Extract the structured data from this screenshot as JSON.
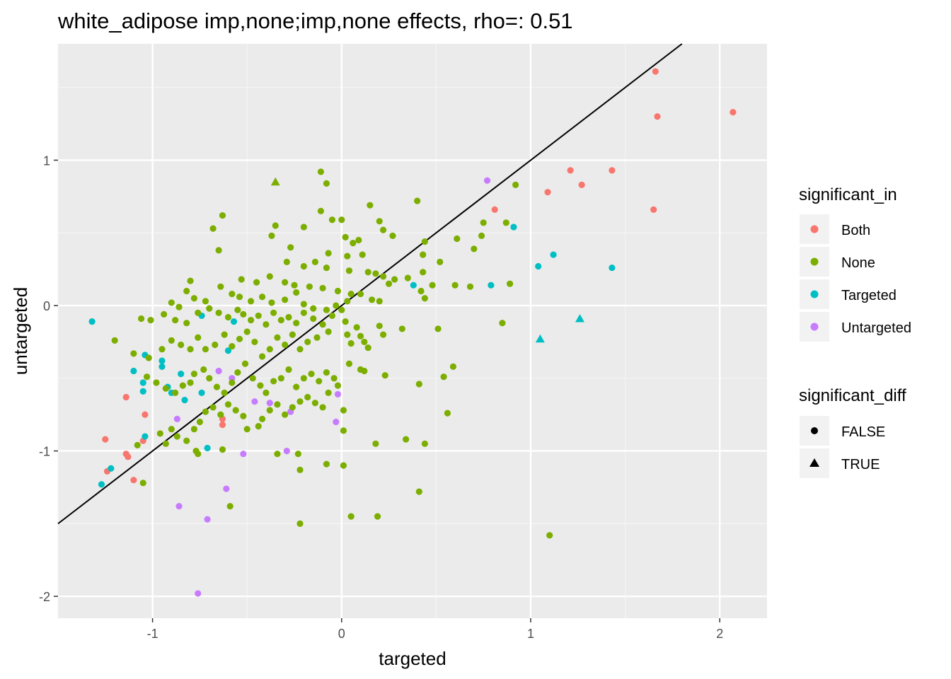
{
  "chart_data": {
    "type": "scatter",
    "title": "white_adipose imp,none;imp,none effects, rho=: 0.51",
    "xlabel": "targeted",
    "ylabel": "untargeted",
    "xlim": [
      -1.5,
      2.25
    ],
    "ylim": [
      -2.15,
      1.8
    ],
    "x_ticks": [
      -1,
      0,
      1,
      2
    ],
    "y_ticks": [
      -2,
      -1,
      0,
      1
    ],
    "x_tick_labels": [
      "-1",
      "0",
      "1",
      "2"
    ],
    "y_tick_labels": [
      "-2",
      "-1",
      "0",
      "1"
    ],
    "grid": true,
    "reference_line": {
      "slope": 1,
      "intercept": 0
    },
    "legends": [
      {
        "title": "significant_in",
        "position": "right",
        "entries": [
          {
            "label": "Both",
            "color": "#F8766D"
          },
          {
            "label": "None",
            "color": "#7CAE00"
          },
          {
            "label": "Targeted",
            "color": "#00BFC4"
          },
          {
            "label": "Untargeted",
            "color": "#C77CFF"
          }
        ]
      },
      {
        "title": "significant_diff",
        "position": "right",
        "entries": [
          {
            "label": "FALSE",
            "shape": "circle"
          },
          {
            "label": "TRUE",
            "shape": "triangle"
          }
        ]
      }
    ],
    "series": [
      {
        "group": "Both",
        "shape": "circle",
        "points": [
          [
            1.66,
            1.61
          ],
          [
            1.67,
            1.3
          ],
          [
            2.07,
            1.33
          ],
          [
            1.21,
            0.93
          ],
          [
            1.43,
            0.93
          ],
          [
            1.27,
            0.83
          ],
          [
            1.09,
            0.78
          ],
          [
            1.65,
            0.66
          ],
          [
            0.81,
            0.66
          ],
          [
            -1.14,
            -0.63
          ],
          [
            -1.04,
            -0.75
          ],
          [
            -1.05,
            -0.93
          ],
          [
            -1.25,
            -0.92
          ],
          [
            -1.14,
            -1.02
          ],
          [
            -1.13,
            -1.04
          ],
          [
            -1.24,
            -1.14
          ],
          [
            -1.1,
            -1.2
          ],
          [
            -0.63,
            -0.78
          ],
          [
            -0.63,
            -0.82
          ]
        ]
      },
      {
        "group": "Targeted",
        "shape": "circle",
        "points": [
          [
            -1.32,
            -0.11
          ],
          [
            0.91,
            0.54
          ],
          [
            1.12,
            0.35
          ],
          [
            1.04,
            0.27
          ],
          [
            1.43,
            0.26
          ],
          [
            0.79,
            0.14
          ],
          [
            0.38,
            0.14
          ],
          [
            -1.1,
            -0.45
          ],
          [
            -1.04,
            -0.34
          ],
          [
            -0.95,
            -0.38
          ],
          [
            -0.95,
            -0.42
          ],
          [
            -1.05,
            -0.53
          ],
          [
            -1.05,
            -0.59
          ],
          [
            -0.92,
            -0.56
          ],
          [
            -0.9,
            -0.6
          ],
          [
            -0.85,
            -0.47
          ],
          [
            -0.83,
            -0.65
          ],
          [
            -0.74,
            -0.6
          ],
          [
            -0.71,
            -0.98
          ],
          [
            -1.04,
            -0.9
          ],
          [
            -1.22,
            -1.12
          ],
          [
            -1.27,
            -1.23
          ],
          [
            -0.57,
            -0.11
          ],
          [
            -0.6,
            -0.31
          ],
          [
            -0.74,
            -0.07
          ]
        ]
      },
      {
        "group": "Untargeted",
        "shape": "circle",
        "points": [
          [
            0.77,
            0.86
          ],
          [
            -0.65,
            -0.45
          ],
          [
            -0.58,
            -0.5
          ],
          [
            -0.46,
            -0.66
          ],
          [
            -0.38,
            -0.67
          ],
          [
            -0.27,
            -0.73
          ],
          [
            -0.02,
            -0.61
          ],
          [
            -0.03,
            -0.8
          ],
          [
            -0.29,
            -1.0
          ],
          [
            -0.52,
            -1.02
          ],
          [
            -0.61,
            -1.26
          ],
          [
            -0.87,
            -0.78
          ],
          [
            -0.86,
            -1.38
          ],
          [
            -0.71,
            -1.47
          ],
          [
            -0.76,
            -1.98
          ]
        ]
      },
      {
        "group": "Targeted",
        "shape": "triangle",
        "points": [
          [
            1.05,
            -0.23
          ],
          [
            1.26,
            -0.09
          ]
        ]
      },
      {
        "group": "None",
        "shape": "triangle",
        "points": [
          [
            -0.35,
            0.85
          ]
        ]
      },
      {
        "group": "None",
        "shape": "circle",
        "points": [
          [
            -0.11,
            0.92
          ],
          [
            -0.08,
            0.84
          ],
          [
            0.4,
            0.72
          ],
          [
            0.15,
            0.69
          ],
          [
            -0.63,
            0.62
          ],
          [
            -0.68,
            0.53
          ],
          [
            0.92,
            0.83
          ],
          [
            -0.11,
            0.65
          ],
          [
            -0.05,
            0.59
          ],
          [
            0.0,
            0.59
          ],
          [
            -0.35,
            0.55
          ],
          [
            -0.2,
            0.54
          ],
          [
            0.2,
            0.58
          ],
          [
            0.22,
            0.52
          ],
          [
            0.02,
            0.47
          ],
          [
            0.09,
            0.45
          ],
          [
            0.06,
            0.43
          ],
          [
            -0.37,
            0.48
          ],
          [
            0.27,
            0.48
          ],
          [
            0.44,
            0.44
          ],
          [
            0.61,
            0.46
          ],
          [
            0.74,
            0.48
          ],
          [
            0.87,
            0.57
          ],
          [
            0.75,
            0.57
          ],
          [
            0.7,
            0.39
          ],
          [
            -0.27,
            0.4
          ],
          [
            -0.65,
            0.38
          ],
          [
            -0.07,
            0.36
          ],
          [
            0.03,
            0.34
          ],
          [
            0.11,
            0.35
          ],
          [
            0.43,
            0.35
          ],
          [
            0.52,
            0.3
          ],
          [
            -0.29,
            0.3
          ],
          [
            -0.2,
            0.27
          ],
          [
            -0.14,
            0.3
          ],
          [
            -0.08,
            0.26
          ],
          [
            0.04,
            0.24
          ],
          [
            0.14,
            0.23
          ],
          [
            0.18,
            0.22
          ],
          [
            0.22,
            0.2
          ],
          [
            0.28,
            0.18
          ],
          [
            0.35,
            0.19
          ],
          [
            0.43,
            0.23
          ],
          [
            0.48,
            0.14
          ],
          [
            0.6,
            0.14
          ],
          [
            0.68,
            0.13
          ],
          [
            0.89,
            0.15
          ],
          [
            -0.38,
            0.2
          ],
          [
            -0.53,
            0.18
          ],
          [
            -0.45,
            0.16
          ],
          [
            -0.3,
            0.16
          ],
          [
            -0.25,
            0.14
          ],
          [
            -0.17,
            0.13
          ],
          [
            -0.1,
            0.12
          ],
          [
            -0.02,
            0.1
          ],
          [
            0.05,
            0.08
          ],
          [
            0.1,
            0.08
          ],
          [
            0.16,
            0.04
          ],
          [
            0.2,
            0.03
          ],
          [
            0.25,
            0.15
          ],
          [
            -0.8,
            0.17
          ],
          [
            -0.82,
            0.1
          ],
          [
            -0.78,
            0.05
          ],
          [
            -0.72,
            0.03
          ],
          [
            -0.64,
            0.13
          ],
          [
            -0.58,
            0.08
          ],
          [
            -0.54,
            0.06
          ],
          [
            -0.48,
            0.03
          ],
          [
            -0.42,
            0.06
          ],
          [
            -0.37,
            0.02
          ],
          [
            -0.3,
            0.04
          ],
          [
            -0.24,
            0.09
          ],
          [
            -0.2,
            0.01
          ],
          [
            -0.15,
            -0.02
          ],
          [
            -0.08,
            -0.03
          ],
          [
            -0.03,
            0.0
          ],
          [
            0.0,
            -0.03
          ],
          [
            0.03,
            0.03
          ],
          [
            0.42,
            0.1
          ],
          [
            0.44,
            0.05
          ],
          [
            -0.94,
            -0.06
          ],
          [
            -0.9,
            0.02
          ],
          [
            -0.86,
            -0.01
          ],
          [
            -0.88,
            -0.1
          ],
          [
            -0.82,
            -0.12
          ],
          [
            -0.76,
            -0.05
          ],
          [
            -0.7,
            -0.02
          ],
          [
            -0.65,
            -0.05
          ],
          [
            -0.6,
            -0.08
          ],
          [
            -0.55,
            -0.03
          ],
          [
            -0.52,
            -0.06
          ],
          [
            -0.48,
            -0.1
          ],
          [
            -0.44,
            -0.07
          ],
          [
            -0.4,
            -0.13
          ],
          [
            -0.36,
            -0.05
          ],
          [
            -0.32,
            -0.1
          ],
          [
            -0.28,
            -0.08
          ],
          [
            -0.24,
            -0.12
          ],
          [
            -0.2,
            -0.05
          ],
          [
            -0.15,
            -0.09
          ],
          [
            -0.1,
            -0.13
          ],
          [
            -0.05,
            -0.07
          ],
          [
            0.02,
            -0.11
          ],
          [
            0.08,
            -0.15
          ],
          [
            0.1,
            -0.21
          ],
          [
            0.2,
            -0.14
          ],
          [
            0.22,
            -0.2
          ],
          [
            0.32,
            -0.16
          ],
          [
            0.51,
            -0.16
          ],
          [
            0.85,
            -0.12
          ],
          [
            -1.06,
            -0.09
          ],
          [
            -1.01,
            -0.1
          ],
          [
            -1.2,
            -0.24
          ],
          [
            -1.1,
            -0.33
          ],
          [
            -1.02,
            -0.36
          ],
          [
            -0.95,
            -0.3
          ],
          [
            -0.9,
            -0.24
          ],
          [
            -0.85,
            -0.27
          ],
          [
            -0.8,
            -0.3
          ],
          [
            -0.76,
            -0.22
          ],
          [
            -0.72,
            -0.3
          ],
          [
            -0.67,
            -0.27
          ],
          [
            -0.62,
            -0.2
          ],
          [
            -0.58,
            -0.28
          ],
          [
            -0.54,
            -0.23
          ],
          [
            -0.5,
            -0.18
          ],
          [
            -0.46,
            -0.25
          ],
          [
            -0.42,
            -0.35
          ],
          [
            -0.38,
            -0.3
          ],
          [
            -0.34,
            -0.22
          ],
          [
            -0.3,
            -0.27
          ],
          [
            -0.26,
            -0.2
          ],
          [
            -0.22,
            -0.3
          ],
          [
            -0.18,
            -0.25
          ],
          [
            -0.13,
            -0.22
          ],
          [
            -0.07,
            -0.18
          ],
          [
            0.03,
            -0.2
          ],
          [
            0.05,
            -0.26
          ],
          [
            0.12,
            -0.25
          ],
          [
            0.14,
            -0.29
          ],
          [
            -1.03,
            -0.49
          ],
          [
            -0.98,
            -0.53
          ],
          [
            -0.93,
            -0.57
          ],
          [
            -0.88,
            -0.6
          ],
          [
            -0.84,
            -0.55
          ],
          [
            -0.8,
            -0.53
          ],
          [
            -0.78,
            -0.47
          ],
          [
            -0.73,
            -0.44
          ],
          [
            -0.7,
            -0.5
          ],
          [
            -0.66,
            -0.56
          ],
          [
            -0.62,
            -0.6
          ],
          [
            -0.58,
            -0.53
          ],
          [
            -0.55,
            -0.46
          ],
          [
            -0.51,
            -0.4
          ],
          [
            -0.47,
            -0.5
          ],
          [
            -0.43,
            -0.55
          ],
          [
            -0.4,
            -0.6
          ],
          [
            -0.36,
            -0.52
          ],
          [
            -0.32,
            -0.5
          ],
          [
            -0.28,
            -0.44
          ],
          [
            -0.24,
            -0.56
          ],
          [
            -0.2,
            -0.5
          ],
          [
            -0.16,
            -0.47
          ],
          [
            -0.12,
            -0.52
          ],
          [
            -0.08,
            -0.46
          ],
          [
            -0.04,
            -0.5
          ],
          [
            -0.02,
            -0.55
          ],
          [
            0.04,
            -0.4
          ],
          [
            0.1,
            -0.44
          ],
          [
            0.12,
            -0.45
          ],
          [
            0.23,
            -0.48
          ],
          [
            0.41,
            -0.54
          ],
          [
            0.54,
            -0.49
          ],
          [
            0.59,
            -0.42
          ],
          [
            0.56,
            -0.74
          ],
          [
            -0.96,
            -0.88
          ],
          [
            -0.93,
            -0.95
          ],
          [
            -0.9,
            -0.85
          ],
          [
            -0.87,
            -0.9
          ],
          [
            -0.82,
            -0.93
          ],
          [
            -0.78,
            -0.85
          ],
          [
            -0.75,
            -0.8
          ],
          [
            -0.72,
            -0.73
          ],
          [
            -0.68,
            -0.7
          ],
          [
            -0.64,
            -0.75
          ],
          [
            -0.6,
            -0.68
          ],
          [
            -0.56,
            -0.72
          ],
          [
            -0.52,
            -0.76
          ],
          [
            -0.5,
            -0.85
          ],
          [
            -0.44,
            -0.83
          ],
          [
            -0.42,
            -0.78
          ],
          [
            -0.38,
            -0.72
          ],
          [
            -0.34,
            -0.68
          ],
          [
            -0.3,
            -0.75
          ],
          [
            -0.26,
            -0.7
          ],
          [
            -0.22,
            -0.66
          ],
          [
            -0.18,
            -0.63
          ],
          [
            -0.14,
            -0.67
          ],
          [
            -0.1,
            -0.7
          ],
          [
            -0.07,
            -0.6
          ],
          [
            0.01,
            -0.72
          ],
          [
            0.01,
            -0.86
          ],
          [
            -0.63,
            -0.99
          ],
          [
            -0.77,
            -1.0
          ],
          [
            -0.76,
            -1.02
          ],
          [
            -0.59,
            -1.38
          ],
          [
            -0.34,
            -1.02
          ],
          [
            -0.23,
            -1.02
          ],
          [
            -0.22,
            -1.13
          ],
          [
            -0.08,
            -1.09
          ],
          [
            0.01,
            -1.1
          ],
          [
            0.18,
            -0.95
          ],
          [
            0.34,
            -0.92
          ],
          [
            0.44,
            -0.95
          ],
          [
            0.41,
            -1.28
          ],
          [
            -0.22,
            -1.5
          ],
          [
            0.05,
            -1.45
          ],
          [
            0.19,
            -1.45
          ],
          [
            1.1,
            -1.58
          ],
          [
            -1.05,
            -1.22
          ],
          [
            -1.08,
            -0.96
          ]
        ]
      }
    ]
  }
}
